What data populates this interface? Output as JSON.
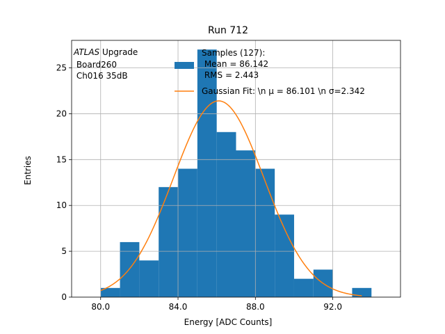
{
  "chart_data": {
    "type": "bar",
    "title": "Run 712",
    "xlabel": "Energy [ADC Counts]",
    "ylabel": "Entries",
    "xlim": [
      78.5,
      95.5
    ],
    "ylim": [
      0,
      28
    ],
    "xticks": [
      80.0,
      84.0,
      88.0,
      92.0
    ],
    "xtick_labels": [
      "80.0",
      "84.0",
      "88.0",
      "92.0"
    ],
    "yticks": [
      0,
      5,
      10,
      15,
      20,
      25
    ],
    "ytick_labels": [
      "0",
      "5",
      "10",
      "15",
      "20",
      "25"
    ],
    "grid": true,
    "histogram": {
      "bins": [
        {
          "x0": 80.0,
          "x1": 81.0,
          "count": 1
        },
        {
          "x0": 81.0,
          "x1": 82.0,
          "count": 6
        },
        {
          "x0": 82.0,
          "x1": 83.0,
          "count": 4
        },
        {
          "x0": 83.0,
          "x1": 84.0,
          "count": 12
        },
        {
          "x0": 84.0,
          "x1": 85.0,
          "count": 14
        },
        {
          "x0": 85.0,
          "x1": 86.0,
          "count": 27
        },
        {
          "x0": 86.0,
          "x1": 87.0,
          "count": 18
        },
        {
          "x0": 87.0,
          "x1": 88.0,
          "count": 16
        },
        {
          "x0": 88.0,
          "x1": 89.0,
          "count": 14
        },
        {
          "x0": 89.0,
          "x1": 90.0,
          "count": 9
        },
        {
          "x0": 90.0,
          "x1": 91.0,
          "count": 2
        },
        {
          "x0": 91.0,
          "x1": 92.0,
          "count": 3
        },
        {
          "x0": 92.0,
          "x1": 93.0,
          "count": 0
        },
        {
          "x0": 93.0,
          "x1": 94.0,
          "count": 1
        }
      ],
      "color": "#1f77b4"
    },
    "fit": {
      "type": "gaussian",
      "mu": 86.101,
      "sigma": 2.342,
      "amplitude": 21.4,
      "x_range": [
        80.0,
        93.5
      ],
      "color": "#ff7f0e"
    },
    "legend": {
      "placement": "top-right",
      "entries": [
        {
          "lines": [
            "Samples (127):",
            " Mean = 86.142",
            " RMS = 2.443"
          ],
          "kind": "patch"
        },
        {
          "lines": [
            "Gaussian Fit: \\n μ = 86.101 \\n σ=2.342"
          ],
          "kind": "line"
        }
      ]
    },
    "annotation": {
      "atlas_italic": "ATLAS",
      "atlas_rest": " Upgrade",
      "line2": " Board260",
      "line3": " Ch016 35dB"
    }
  }
}
